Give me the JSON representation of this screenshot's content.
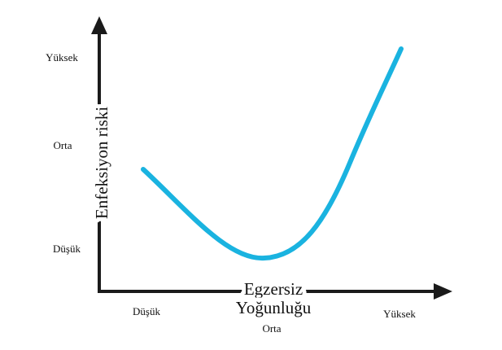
{
  "y_axis": {
    "title": "Enfeksiyon riski",
    "levels": [
      "Yüksek",
      "Orta",
      "Düşük"
    ]
  },
  "x_axis": {
    "title_lines": [
      "Egzersiz",
      "Yoğunluğu"
    ],
    "levels": [
      "Düşük",
      "Orta",
      "Yüksek"
    ]
  }
}
